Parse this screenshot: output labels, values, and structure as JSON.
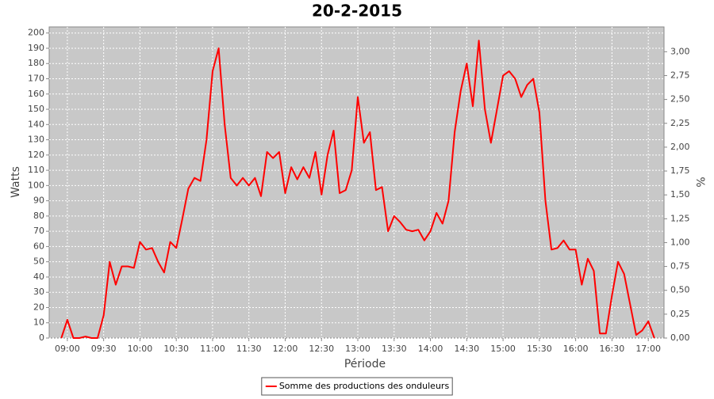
{
  "chart_data": {
    "type": "line",
    "title": "20-2-2015",
    "x_label": "Période",
    "y_label": "Watts",
    "y2_label": "%",
    "x": [
      "08:55",
      "09:00",
      "09:05",
      "09:10",
      "09:15",
      "09:20",
      "09:25",
      "09:30",
      "09:35",
      "09:40",
      "09:45",
      "09:50",
      "09:55",
      "10:00",
      "10:05",
      "10:10",
      "10:15",
      "10:20",
      "10:25",
      "10:30",
      "10:35",
      "10:40",
      "10:45",
      "10:50",
      "10:55",
      "11:00",
      "11:05",
      "11:10",
      "11:15",
      "11:20",
      "11:25",
      "11:30",
      "11:35",
      "11:40",
      "11:45",
      "11:50",
      "11:55",
      "12:00",
      "12:05",
      "12:10",
      "12:15",
      "12:20",
      "12:25",
      "12:30",
      "12:35",
      "12:40",
      "12:45",
      "12:50",
      "12:55",
      "13:00",
      "13:05",
      "13:10",
      "13:15",
      "13:20",
      "13:25",
      "13:30",
      "13:35",
      "13:40",
      "13:45",
      "13:50",
      "13:55",
      "14:00",
      "14:05",
      "14:10",
      "14:15",
      "14:20",
      "14:25",
      "14:30",
      "14:35",
      "14:40",
      "14:45",
      "14:50",
      "14:55",
      "15:00",
      "15:05",
      "15:10",
      "15:15",
      "15:20",
      "15:25",
      "15:30",
      "15:35",
      "15:40",
      "15:45",
      "15:50",
      "15:55",
      "16:00",
      "16:05",
      "16:10",
      "16:15",
      "16:20",
      "16:25",
      "16:30",
      "16:35",
      "16:40",
      "16:45",
      "16:50",
      "16:55",
      "17:00",
      "17:05"
    ],
    "series": [
      {
        "name": "Somme des productions des onduleurs",
        "color": "#ff0000",
        "values": [
          0,
          12,
          0,
          0,
          1,
          0,
          0,
          15,
          50,
          35,
          47,
          47,
          46,
          63,
          58,
          59,
          50,
          43,
          63,
          59,
          78,
          98,
          105,
          103,
          130,
          175,
          190,
          140,
          105,
          100,
          105,
          100,
          105,
          93,
          122,
          118,
          122,
          95,
          112,
          104,
          112,
          105,
          122,
          94,
          120,
          136,
          95,
          97,
          110,
          158,
          128,
          135,
          97,
          99,
          70,
          80,
          76,
          71,
          70,
          71,
          64,
          70,
          82,
          75,
          90,
          135,
          162,
          180,
          152,
          195,
          150,
          128,
          150,
          172,
          175,
          170,
          158,
          166,
          170,
          148,
          90,
          58,
          59,
          64,
          58,
          58,
          35,
          52,
          44,
          3,
          3,
          28,
          50,
          42,
          22,
          2,
          5,
          11,
          0
        ]
      }
    ],
    "xlim": [
      "08:45",
      "17:13"
    ],
    "xticks": [
      "09:00",
      "09:30",
      "10:00",
      "10:30",
      "11:00",
      "11:30",
      "12:00",
      "12:30",
      "13:00",
      "13:30",
      "14:00",
      "14:30",
      "15:00",
      "15:30",
      "16:00",
      "16:30",
      "17:00"
    ],
    "ylim": [
      0,
      204
    ],
    "yticks": [
      0,
      10,
      20,
      30,
      40,
      50,
      60,
      70,
      80,
      90,
      100,
      110,
      120,
      130,
      140,
      150,
      160,
      170,
      180,
      190,
      200
    ],
    "y2lim": [
      0,
      3.26
    ],
    "y2ticks": [
      {
        "value": 0,
        "label": "0,00"
      },
      {
        "value": 0.25,
        "label": "0,25"
      },
      {
        "value": 0.5,
        "label": "0,50"
      },
      {
        "value": 0.75,
        "label": "0,75"
      },
      {
        "value": 1,
        "label": "1,00"
      },
      {
        "value": 1.25,
        "label": "1,25"
      },
      {
        "value": 1.5,
        "label": "1,50"
      },
      {
        "value": 1.75,
        "label": "1,75"
      },
      {
        "value": 2,
        "label": "2,00"
      },
      {
        "value": 2.25,
        "label": "2,25"
      },
      {
        "value": 2.5,
        "label": "2,50"
      },
      {
        "value": 2.75,
        "label": "2,75"
      },
      {
        "value": 3,
        "label": "3,00"
      }
    ],
    "grid": true,
    "legend": "bottom"
  }
}
